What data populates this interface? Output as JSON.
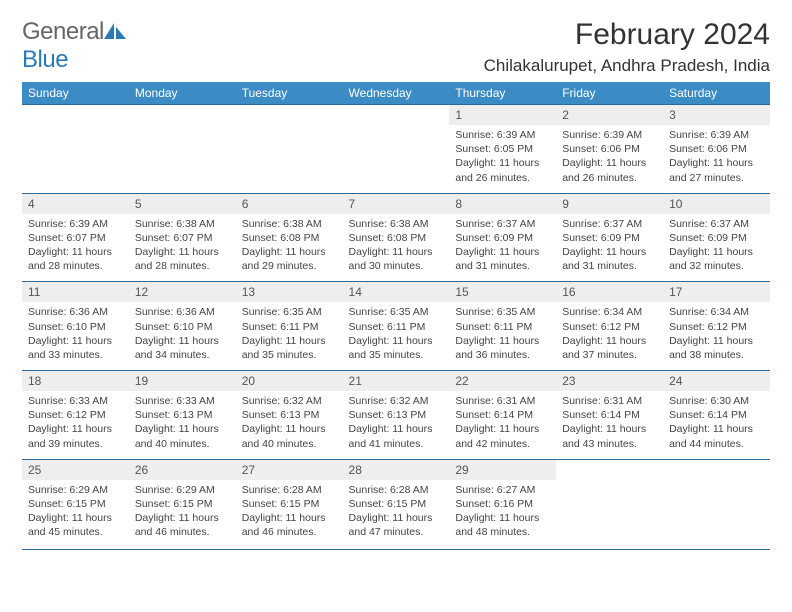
{
  "brand": {
    "word1": "General",
    "word2": "Blue"
  },
  "title": {
    "month": "February 2024",
    "location": "Chilakalurupet, Andhra Pradesh, India"
  },
  "colors": {
    "header_bg": "#3b8bc4",
    "rule": "#2a6a9a",
    "daynum_bg": "#eeeeee"
  },
  "daynames": [
    "Sunday",
    "Monday",
    "Tuesday",
    "Wednesday",
    "Thursday",
    "Friday",
    "Saturday"
  ],
  "weeks": [
    [
      null,
      null,
      null,
      null,
      {
        "n": "1",
        "sr": "Sunrise: 6:39 AM",
        "ss": "Sunset: 6:05 PM",
        "d1": "Daylight: 11 hours",
        "d2": "and 26 minutes."
      },
      {
        "n": "2",
        "sr": "Sunrise: 6:39 AM",
        "ss": "Sunset: 6:06 PM",
        "d1": "Daylight: 11 hours",
        "d2": "and 26 minutes."
      },
      {
        "n": "3",
        "sr": "Sunrise: 6:39 AM",
        "ss": "Sunset: 6:06 PM",
        "d1": "Daylight: 11 hours",
        "d2": "and 27 minutes."
      }
    ],
    [
      {
        "n": "4",
        "sr": "Sunrise: 6:39 AM",
        "ss": "Sunset: 6:07 PM",
        "d1": "Daylight: 11 hours",
        "d2": "and 28 minutes."
      },
      {
        "n": "5",
        "sr": "Sunrise: 6:38 AM",
        "ss": "Sunset: 6:07 PM",
        "d1": "Daylight: 11 hours",
        "d2": "and 28 minutes."
      },
      {
        "n": "6",
        "sr": "Sunrise: 6:38 AM",
        "ss": "Sunset: 6:08 PM",
        "d1": "Daylight: 11 hours",
        "d2": "and 29 minutes."
      },
      {
        "n": "7",
        "sr": "Sunrise: 6:38 AM",
        "ss": "Sunset: 6:08 PM",
        "d1": "Daylight: 11 hours",
        "d2": "and 30 minutes."
      },
      {
        "n": "8",
        "sr": "Sunrise: 6:37 AM",
        "ss": "Sunset: 6:09 PM",
        "d1": "Daylight: 11 hours",
        "d2": "and 31 minutes."
      },
      {
        "n": "9",
        "sr": "Sunrise: 6:37 AM",
        "ss": "Sunset: 6:09 PM",
        "d1": "Daylight: 11 hours",
        "d2": "and 31 minutes."
      },
      {
        "n": "10",
        "sr": "Sunrise: 6:37 AM",
        "ss": "Sunset: 6:09 PM",
        "d1": "Daylight: 11 hours",
        "d2": "and 32 minutes."
      }
    ],
    [
      {
        "n": "11",
        "sr": "Sunrise: 6:36 AM",
        "ss": "Sunset: 6:10 PM",
        "d1": "Daylight: 11 hours",
        "d2": "and 33 minutes."
      },
      {
        "n": "12",
        "sr": "Sunrise: 6:36 AM",
        "ss": "Sunset: 6:10 PM",
        "d1": "Daylight: 11 hours",
        "d2": "and 34 minutes."
      },
      {
        "n": "13",
        "sr": "Sunrise: 6:35 AM",
        "ss": "Sunset: 6:11 PM",
        "d1": "Daylight: 11 hours",
        "d2": "and 35 minutes."
      },
      {
        "n": "14",
        "sr": "Sunrise: 6:35 AM",
        "ss": "Sunset: 6:11 PM",
        "d1": "Daylight: 11 hours",
        "d2": "and 35 minutes."
      },
      {
        "n": "15",
        "sr": "Sunrise: 6:35 AM",
        "ss": "Sunset: 6:11 PM",
        "d1": "Daylight: 11 hours",
        "d2": "and 36 minutes."
      },
      {
        "n": "16",
        "sr": "Sunrise: 6:34 AM",
        "ss": "Sunset: 6:12 PM",
        "d1": "Daylight: 11 hours",
        "d2": "and 37 minutes."
      },
      {
        "n": "17",
        "sr": "Sunrise: 6:34 AM",
        "ss": "Sunset: 6:12 PM",
        "d1": "Daylight: 11 hours",
        "d2": "and 38 minutes."
      }
    ],
    [
      {
        "n": "18",
        "sr": "Sunrise: 6:33 AM",
        "ss": "Sunset: 6:12 PM",
        "d1": "Daylight: 11 hours",
        "d2": "and 39 minutes."
      },
      {
        "n": "19",
        "sr": "Sunrise: 6:33 AM",
        "ss": "Sunset: 6:13 PM",
        "d1": "Daylight: 11 hours",
        "d2": "and 40 minutes."
      },
      {
        "n": "20",
        "sr": "Sunrise: 6:32 AM",
        "ss": "Sunset: 6:13 PM",
        "d1": "Daylight: 11 hours",
        "d2": "and 40 minutes."
      },
      {
        "n": "21",
        "sr": "Sunrise: 6:32 AM",
        "ss": "Sunset: 6:13 PM",
        "d1": "Daylight: 11 hours",
        "d2": "and 41 minutes."
      },
      {
        "n": "22",
        "sr": "Sunrise: 6:31 AM",
        "ss": "Sunset: 6:14 PM",
        "d1": "Daylight: 11 hours",
        "d2": "and 42 minutes."
      },
      {
        "n": "23",
        "sr": "Sunrise: 6:31 AM",
        "ss": "Sunset: 6:14 PM",
        "d1": "Daylight: 11 hours",
        "d2": "and 43 minutes."
      },
      {
        "n": "24",
        "sr": "Sunrise: 6:30 AM",
        "ss": "Sunset: 6:14 PM",
        "d1": "Daylight: 11 hours",
        "d2": "and 44 minutes."
      }
    ],
    [
      {
        "n": "25",
        "sr": "Sunrise: 6:29 AM",
        "ss": "Sunset: 6:15 PM",
        "d1": "Daylight: 11 hours",
        "d2": "and 45 minutes."
      },
      {
        "n": "26",
        "sr": "Sunrise: 6:29 AM",
        "ss": "Sunset: 6:15 PM",
        "d1": "Daylight: 11 hours",
        "d2": "and 46 minutes."
      },
      {
        "n": "27",
        "sr": "Sunrise: 6:28 AM",
        "ss": "Sunset: 6:15 PM",
        "d1": "Daylight: 11 hours",
        "d2": "and 46 minutes."
      },
      {
        "n": "28",
        "sr": "Sunrise: 6:28 AM",
        "ss": "Sunset: 6:15 PM",
        "d1": "Daylight: 11 hours",
        "d2": "and 47 minutes."
      },
      {
        "n": "29",
        "sr": "Sunrise: 6:27 AM",
        "ss": "Sunset: 6:16 PM",
        "d1": "Daylight: 11 hours",
        "d2": "and 48 minutes."
      },
      null,
      null
    ]
  ]
}
